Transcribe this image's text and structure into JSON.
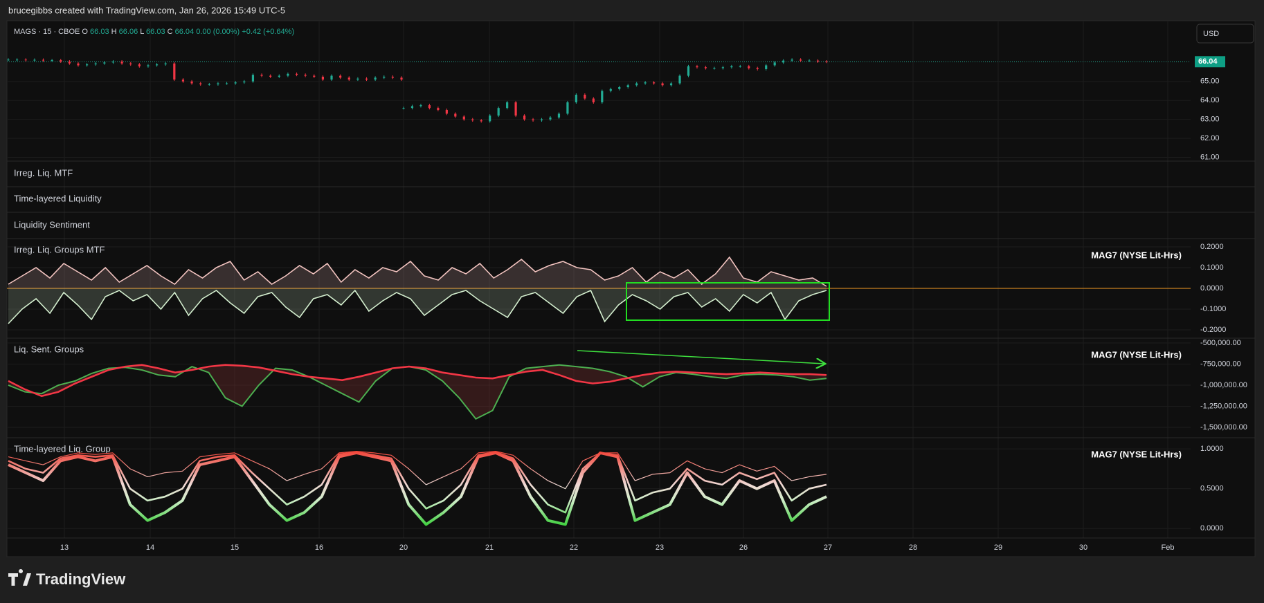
{
  "header": "brucegibbs created with TradingView.com, Jan 26, 2026 15:49 UTC-5",
  "symbol": "MAGS · 15 · CBOE",
  "ohlc": [
    {
      "label": "O",
      "value": "66.03"
    },
    {
      "label": "H",
      "value": "66.06"
    },
    {
      "label": "L",
      "value": "66.03"
    },
    {
      "label": "C",
      "value": "66.04"
    }
  ],
  "change": "0.00 (0.00%)",
  "change_ext": "+0.42 (+0.64%)",
  "currency": "USD",
  "last_price": 66.04,
  "price_pane": {
    "ylim": [
      60.8,
      68.2
    ],
    "yticks": [
      {
        "value": 65,
        "label": "65.00"
      },
      {
        "value": 64,
        "label": "64.00"
      },
      {
        "value": 63,
        "label": "63.00"
      },
      {
        "value": 62,
        "label": "62.00"
      },
      {
        "value": 61,
        "label": "61.00"
      }
    ],
    "sessions": [
      [
        66.15,
        66.15,
        66.12,
        66.14,
        66.1,
        66.12,
        66.05,
        65.95,
        65.85,
        65.9,
        65.95,
        66.0,
        66.05,
        65.95,
        65.9,
        65.8,
        65.85,
        65.9,
        65.95,
        65.1,
        65.0,
        64.9,
        64.85,
        64.85,
        64.9,
        64.9,
        64.95,
        65.0,
        65.35,
        65.3,
        65.25,
        65.3,
        65.4,
        65.35,
        65.3,
        65.25,
        65.1,
        65.3,
        65.2,
        65.1,
        65.15,
        65.1,
        65.2,
        65.25,
        65.2,
        65.1
      ],
      [
        63.6,
        63.7,
        63.75,
        63.6,
        63.5,
        63.3,
        63.15,
        63.0,
        62.95,
        62.9,
        63.2,
        63.6,
        63.9,
        63.2,
        63.0,
        62.95,
        63.0,
        63.1,
        63.3,
        63.9,
        64.3,
        64.1,
        63.9,
        64.5,
        64.6,
        64.7,
        64.8,
        64.9,
        64.95,
        64.9,
        64.8,
        64.9,
        65.3,
        65.8,
        65.75,
        65.7,
        65.7,
        65.75,
        65.8,
        65.8,
        65.7,
        65.65,
        65.85,
        66.0,
        66.1,
        66.15,
        66.1,
        66.1,
        66.05,
        66.04
      ]
    ]
  },
  "collapsed_panes": [
    "Irreg. Liq. MTF",
    "Time-layered Liquidity",
    "Liquidity Sentiment"
  ],
  "indicators": [
    {
      "type": "fill-zero",
      "title": "Irreg. Liq. Groups MTF",
      "tag": "MAG7 (NYSE Lit-Hrs)",
      "ylim": [
        -0.24,
        0.24
      ],
      "yticks": [
        {
          "value": 0.2,
          "label": "0.2000"
        },
        {
          "value": 0.1,
          "label": "0.1000"
        },
        {
          "value": 0,
          "label": "0.0000"
        },
        {
          "value": -0.1,
          "label": "-0.1000"
        },
        {
          "value": -0.2,
          "label": "-0.2000"
        }
      ],
      "series": [
        {
          "color": "#f3c4c0",
          "values": [
            0.02,
            0.06,
            0.1,
            0.05,
            0.12,
            0.08,
            0.04,
            0.1,
            0.03,
            0.07,
            0.11,
            0.06,
            0.02,
            0.09,
            0.05,
            0.1,
            0.13,
            0.04,
            0.08,
            0.02,
            0.06,
            0.11,
            0.07,
            0.12,
            0.03,
            0.09,
            0.05,
            0.1,
            0.08,
            0.13,
            0.06,
            0.04,
            0.1,
            0.07,
            0.12,
            0.05,
            0.09,
            0.14,
            0.08,
            0.11,
            0.13,
            0.1,
            0.09,
            0.04,
            0.06,
            0.1,
            0.03,
            0.08,
            0.05,
            0.09,
            0.02,
            0.07,
            0.15,
            0.05,
            0.03,
            0.08,
            0.06,
            0.04,
            0.05,
            0.01
          ]
        },
        {
          "color": "#d4efcf",
          "values": [
            -0.17,
            -0.1,
            -0.05,
            -0.12,
            -0.02,
            -0.08,
            -0.15,
            -0.04,
            -0.01,
            -0.06,
            -0.03,
            -0.1,
            -0.02,
            -0.13,
            -0.05,
            -0.01,
            -0.07,
            -0.12,
            -0.04,
            -0.02,
            -0.09,
            -0.14,
            -0.05,
            -0.03,
            -0.08,
            -0.01,
            -0.11,
            -0.06,
            -0.02,
            -0.05,
            -0.13,
            -0.08,
            -0.03,
            -0.01,
            -0.06,
            -0.1,
            -0.14,
            -0.04,
            -0.02,
            -0.07,
            -0.12,
            -0.04,
            -0.01,
            -0.16,
            -0.08,
            -0.03,
            -0.06,
            -0.1,
            -0.04,
            -0.02,
            -0.09,
            -0.05,
            -0.11,
            -0.03,
            -0.07,
            -0.02,
            -0.15,
            -0.06,
            -0.03,
            -0.01
          ]
        }
      ]
    },
    {
      "type": "fill-between",
      "title": "Liq. Sent. Groups",
      "tag": "MAG7 (NYSE Lit-Hrs)",
      "ylim": [
        -1623000,
        -443000
      ],
      "yticks": [
        {
          "value": -500000,
          "label": "-500,000.00"
        },
        {
          "value": -750000,
          "label": "-750,000.00"
        },
        {
          "value": -1000000,
          "label": "-1,000,000.00"
        },
        {
          "value": -1250000,
          "label": "-1,250,000.00"
        },
        {
          "value": -1500000,
          "label": "-1,500,000.00"
        }
      ],
      "series": [
        {
          "color": "#f23645",
          "values": [
            -950000,
            -1050000,
            -1130000,
            -1080000,
            -980000,
            -900000,
            -820000,
            -780000,
            -760000,
            -800000,
            -850000,
            -820000,
            -780000,
            -760000,
            -770000,
            -790000,
            -830000,
            -870000,
            -900000,
            -920000,
            -940000,
            -900000,
            -850000,
            -800000,
            -780000,
            -800000,
            -850000,
            -880000,
            -910000,
            -920000,
            -880000,
            -840000,
            -820000,
            -880000,
            -950000,
            -980000,
            -960000,
            -920000,
            -880000,
            -850000,
            -840000,
            -850000,
            -860000,
            -870000,
            -860000,
            -850000,
            -860000,
            -870000,
            -870000,
            -880000
          ]
        },
        {
          "color": "#4caf50",
          "values": [
            -1000000,
            -1080000,
            -1100000,
            -1000000,
            -950000,
            -860000,
            -800000,
            -790000,
            -820000,
            -880000,
            -900000,
            -780000,
            -850000,
            -1150000,
            -1250000,
            -1000000,
            -800000,
            -820000,
            -900000,
            -1000000,
            -1100000,
            -1200000,
            -950000,
            -800000,
            -780000,
            -820000,
            -950000,
            -1150000,
            -1400000,
            -1300000,
            -900000,
            -800000,
            -780000,
            -760000,
            -780000,
            -800000,
            -840000,
            -900000,
            -1020000,
            -900000,
            -850000,
            -870000,
            -900000,
            -920000,
            -880000,
            -870000,
            -880000,
            -900000,
            -940000,
            -920000
          ]
        }
      ]
    },
    {
      "type": "gradient-lines",
      "title": "Time-layered Liq. Group",
      "tag": "MAG7 (NYSE Lit-Hrs)",
      "ylim": [
        -0.12,
        1.14
      ],
      "yticks": [
        {
          "value": 1,
          "label": "1.0000"
        },
        {
          "value": 0.5,
          "label": "0.5000"
        },
        {
          "value": 0,
          "label": "0.0000"
        }
      ],
      "series": [
        {
          "values": [
            0.8,
            0.7,
            0.6,
            0.85,
            0.9,
            0.85,
            0.9,
            0.3,
            0.1,
            0.2,
            0.35,
            0.8,
            0.85,
            0.9,
            0.6,
            0.3,
            0.1,
            0.2,
            0.4,
            0.9,
            0.95,
            0.9,
            0.85,
            0.3,
            0.05,
            0.2,
            0.4,
            0.9,
            0.95,
            0.85,
            0.4,
            0.1,
            0.05,
            0.7,
            0.95,
            0.9,
            0.1,
            0.2,
            0.3,
            0.7,
            0.4,
            0.3,
            0.6,
            0.5,
            0.6,
            0.1,
            0.3,
            0.4
          ]
        },
        {
          "values": [
            0.85,
            0.75,
            0.7,
            0.88,
            0.92,
            0.9,
            0.92,
            0.5,
            0.35,
            0.4,
            0.5,
            0.85,
            0.9,
            0.92,
            0.7,
            0.5,
            0.3,
            0.4,
            0.55,
            0.93,
            0.96,
            0.92,
            0.88,
            0.5,
            0.25,
            0.35,
            0.55,
            0.92,
            0.96,
            0.88,
            0.55,
            0.3,
            0.2,
            0.75,
            0.95,
            0.92,
            0.35,
            0.45,
            0.5,
            0.75,
            0.6,
            0.55,
            0.7,
            0.62,
            0.7,
            0.35,
            0.5,
            0.55
          ]
        },
        {
          "values": [
            0.9,
            0.85,
            0.8,
            0.9,
            0.95,
            0.93,
            0.95,
            0.75,
            0.65,
            0.7,
            0.72,
            0.9,
            0.93,
            0.95,
            0.85,
            0.75,
            0.6,
            0.68,
            0.75,
            0.95,
            0.97,
            0.95,
            0.92,
            0.75,
            0.55,
            0.65,
            0.75,
            0.95,
            0.97,
            0.92,
            0.75,
            0.6,
            0.5,
            0.85,
            0.95,
            0.95,
            0.6,
            0.68,
            0.7,
            0.85,
            0.75,
            0.7,
            0.8,
            0.72,
            0.78,
            0.6,
            0.65,
            0.68
          ]
        }
      ]
    }
  ],
  "time_axis": [
    "13",
    "14",
    "15",
    "16",
    "20",
    "21",
    "22",
    "23",
    "26",
    "27",
    "28",
    "29",
    "30",
    "Feb"
  ],
  "footer": "TradingView"
}
